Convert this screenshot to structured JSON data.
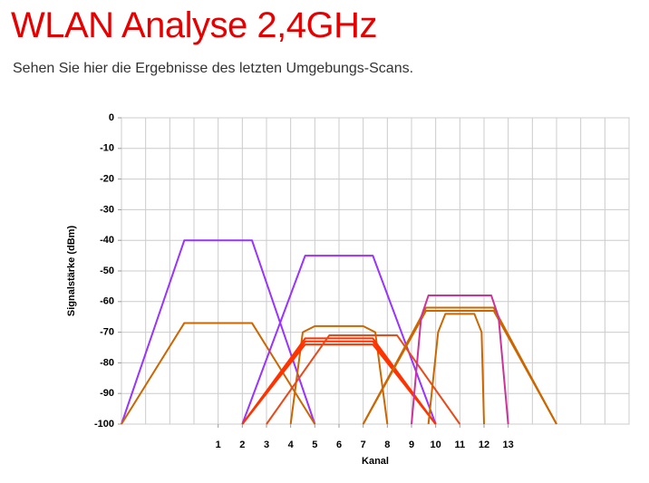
{
  "chart_data": {
    "type": "line",
    "title": "WLAN Analyse 2,4GHz",
    "subtitle": "Sehen Sie hier die Ergebnisse des letzten Umgebungs-Scans.",
    "xlabel": "Kanal",
    "ylabel": "Signalstärke (dBm)",
    "xlim": [
      -3,
      18
    ],
    "ylim": [
      -100,
      0
    ],
    "xticks": [
      1,
      2,
      3,
      4,
      5,
      6,
      7,
      8,
      9,
      10,
      11,
      12,
      13
    ],
    "yticks": [
      0,
      -10,
      -20,
      -30,
      -40,
      -50,
      -60,
      -70,
      -80,
      -90,
      -100
    ],
    "xgrid_step": 1,
    "grid": true,
    "series": [
      {
        "color": "#9933ff",
        "x": [
          -3,
          -0.4,
          2.4,
          5
        ],
        "values": [
          -100,
          -40,
          -40,
          -100
        ]
      },
      {
        "color": "#cc6600",
        "x": [
          -3,
          -0.4,
          2.4,
          5
        ],
        "values": [
          -100,
          -67,
          -67,
          -100
        ]
      },
      {
        "color": "#9933ff",
        "x": [
          2,
          4.6,
          7.4,
          10
        ],
        "values": [
          -100,
          -45,
          -45,
          -100
        ]
      },
      {
        "color": "#cc6600",
        "x": [
          4,
          4.5,
          5,
          7,
          7.5,
          8
        ],
        "values": [
          -100,
          -70,
          -68,
          -68,
          -70,
          -100
        ]
      },
      {
        "color": "#ff3300",
        "x": [
          2,
          4.6,
          7.4,
          10
        ],
        "values": [
          -100,
          -72,
          -72,
          -100
        ]
      },
      {
        "color": "#ff3300",
        "x": [
          2,
          4.6,
          7.4,
          10
        ],
        "values": [
          -100,
          -73,
          -73,
          -100
        ]
      },
      {
        "color": "#ff3300",
        "x": [
          2,
          4.6,
          7.4,
          10
        ],
        "values": [
          -100,
          -74,
          -74,
          -100
        ]
      },
      {
        "color": "#e84a1a",
        "x": [
          3,
          5.6,
          8.4,
          11
        ],
        "values": [
          -100,
          -71,
          -71,
          -100
        ]
      },
      {
        "color": "#cc6600",
        "x": [
          7,
          9.6,
          12.4,
          15
        ],
        "values": [
          -100,
          -62,
          -62,
          -100
        ]
      },
      {
        "color": "#cc6600",
        "x": [
          7,
          9.6,
          12.4,
          15
        ],
        "values": [
          -100,
          -63,
          -63,
          -100
        ]
      },
      {
        "color": "#cc3399",
        "x": [
          9,
          9.4,
          9.7,
          12.3,
          12.6,
          13
        ],
        "values": [
          -100,
          -65,
          -58,
          -58,
          -65,
          -100
        ]
      },
      {
        "color": "#cc6600",
        "x": [
          9.7,
          10.1,
          10.4,
          11.6,
          11.9,
          12
        ],
        "values": [
          -100,
          -70,
          -64,
          -64,
          -70,
          -100
        ]
      }
    ]
  }
}
